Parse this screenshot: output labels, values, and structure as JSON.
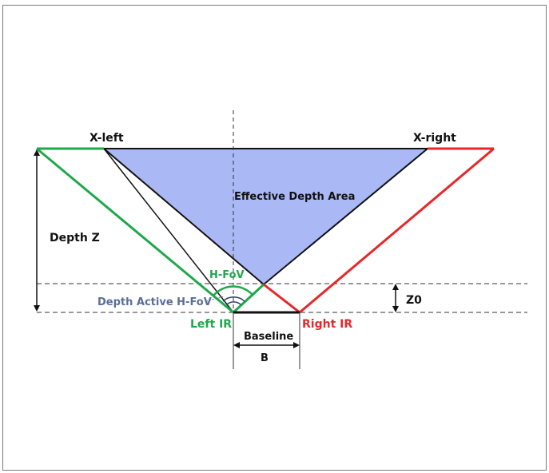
{
  "labels": {
    "x_left": "X-left",
    "x_right": "X-right",
    "effective_depth_area": "Effective Depth Area",
    "depth_z": "Depth Z",
    "h_fov": "H-FoV",
    "depth_active_h_fov": "Depth Active H-FoV",
    "left_ir": "Left IR",
    "right_ir": "Right IR",
    "baseline": "Baseline",
    "b": "B",
    "z0": "Z0"
  },
  "colors": {
    "left_ir": "#1fa84a",
    "right_ir": "#e8262a",
    "effective_area_fill": "#aab8f5",
    "depth_active_text": "#5a6f96",
    "outline": "#111111"
  }
}
